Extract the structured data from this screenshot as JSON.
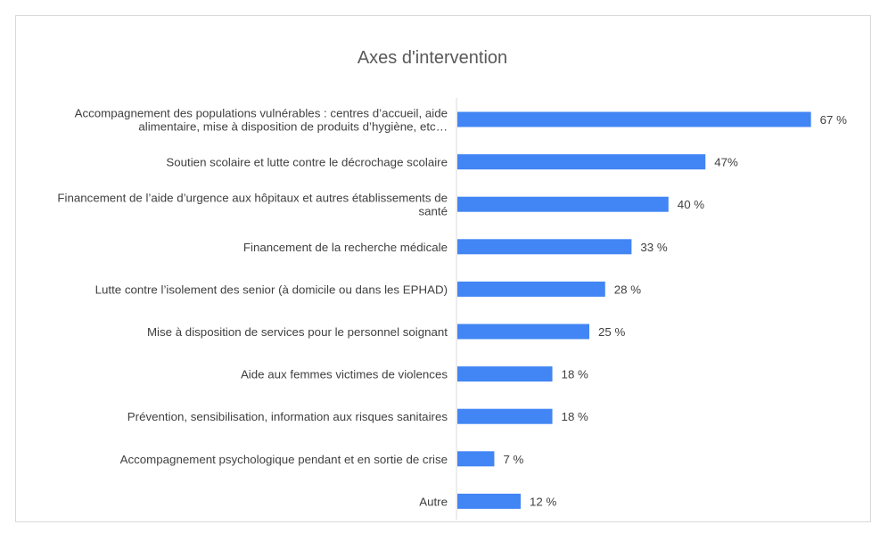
{
  "chart_data": {
    "type": "bar",
    "orientation": "horizontal",
    "title": "Axes d'intervention",
    "xlabel": "",
    "ylabel": "",
    "xlim": [
      0,
      70
    ],
    "grid": false,
    "legend": "none",
    "bar_color": "#4285f4",
    "categories": [
      [
        "Accompagnement des populations vulnérables : centres d’accueil, aide",
        "alimentaire, mise à disposition de produits d’hygiène, etc…"
      ],
      [
        "Soutien scolaire et lutte contre le décrochage scolaire"
      ],
      [
        "Financement de l’aide d’urgence aux hôpitaux et autres établissements de",
        "santé"
      ],
      [
        "Financement de la recherche médicale"
      ],
      [
        "Lutte contre l’isolement des senior (à domicile ou dans les EPHAD)"
      ],
      [
        "Mise à disposition de services pour le personnel soignant"
      ],
      [
        "Aide aux femmes victimes de violences"
      ],
      [
        "Prévention, sensibilisation, information aux risques sanitaires"
      ],
      [
        "Accompagnement psychologique pendant et en sortie de crise"
      ],
      [
        "Autre"
      ]
    ],
    "values": [
      67,
      47,
      40,
      33,
      28,
      25,
      18,
      18,
      7,
      12
    ],
    "data_labels": [
      "67 %",
      "47%",
      "40 %",
      "33 %",
      "28 %",
      "25 %",
      "18 %",
      "18 %",
      "7 %",
      "12 %"
    ]
  }
}
